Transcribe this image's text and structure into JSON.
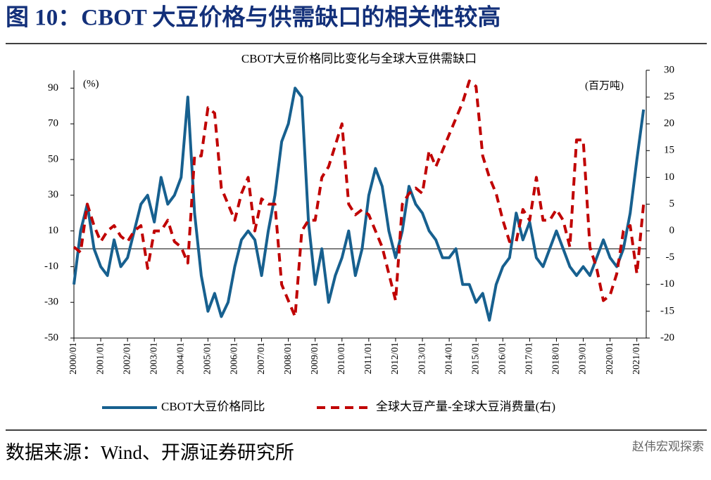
{
  "header": {
    "title": "图 10：CBOT 大豆价格与供需缺口的相关性较高"
  },
  "chart_data": {
    "type": "line",
    "title": "CBOT大豆价格同比变化与全球大豆供需缺口",
    "y_label": "(%)",
    "y2_label": "(百万吨)",
    "categories": [
      "2000/01",
      null,
      null,
      null,
      "2001/01",
      null,
      null,
      null,
      "2002/01",
      null,
      null,
      null,
      "2003/01",
      null,
      null,
      null,
      "2004/01",
      null,
      null,
      null,
      "2005/01",
      null,
      null,
      null,
      "2006/01",
      null,
      null,
      null,
      "2007/01",
      null,
      null,
      null,
      "2008/01",
      null,
      null,
      null,
      "2009/01",
      null,
      null,
      null,
      "2010/01",
      null,
      null,
      null,
      "2011/01",
      null,
      null,
      null,
      "2012/01",
      null,
      null,
      null,
      "2013/01",
      null,
      null,
      null,
      "2014/01",
      null,
      null,
      null,
      "2015/01",
      null,
      null,
      null,
      "2016/01",
      null,
      null,
      null,
      "2017/01",
      null,
      null,
      null,
      "2018/01",
      null,
      null,
      null,
      "2019/01",
      null,
      null,
      null,
      "2020/01",
      null,
      null,
      null,
      "2021/01",
      null
    ],
    "series": [
      {
        "name": "CBOT大豆价格同比",
        "color": "#17608f",
        "axis": "y",
        "dashed": false,
        "values": [
          -20,
          10,
          25,
          0,
          -10,
          -15,
          5,
          -10,
          -5,
          10,
          25,
          30,
          15,
          40,
          25,
          30,
          40,
          85,
          20,
          -15,
          -35,
          -25,
          -38,
          -30,
          -10,
          5,
          10,
          5,
          -15,
          10,
          30,
          60,
          70,
          90,
          85,
          15,
          -20,
          0,
          -30,
          -15,
          -5,
          10,
          -15,
          0,
          30,
          45,
          35,
          10,
          -5,
          10,
          35,
          25,
          20,
          10,
          5,
          -5,
          -5,
          0,
          -20,
          -20,
          -30,
          -25,
          -40,
          -20,
          -10,
          -5,
          20,
          5,
          15,
          -5,
          -10,
          0,
          10,
          0,
          -10,
          -15,
          -10,
          -15,
          -5,
          5,
          -5,
          -10,
          0,
          20,
          50,
          78
        ]
      },
      {
        "name": "全球大豆产量-全球大豆消费量(右)",
        "color": "#c00000",
        "axis": "y2",
        "dashed": true,
        "values": [
          -3,
          -4,
          5,
          1,
          -2,
          0,
          1,
          -1,
          -2,
          0,
          1,
          -7,
          0,
          0,
          2,
          -2,
          -3,
          -6,
          14,
          14,
          23,
          22,
          8,
          5,
          2,
          7,
          10,
          0,
          6,
          5,
          5,
          -10,
          -13,
          -16,
          0,
          2,
          2,
          10,
          12,
          16,
          20,
          5,
          3,
          4,
          3,
          0,
          -3,
          -8,
          -13,
          5,
          7,
          8,
          7,
          15,
          12,
          15,
          18,
          21,
          24,
          28,
          27,
          14,
          10,
          7,
          2,
          -2,
          -2,
          4,
          2,
          10,
          2,
          2,
          4,
          2,
          -3,
          17,
          17,
          -3,
          -7,
          -13,
          -12,
          -8,
          0,
          1,
          -8,
          5
        ]
      }
    ],
    "ylim": [
      -50,
      100
    ],
    "yticks": [
      -50,
      -30,
      -10,
      10,
      30,
      50,
      70,
      90
    ],
    "y2lim": [
      -20,
      30
    ],
    "y2ticks": [
      -20,
      -15,
      -10,
      -5,
      0,
      5,
      10,
      15,
      20,
      25,
      30
    ]
  },
  "footer": {
    "source": "数据来源：Wind、开源证券研究所",
    "watermark": "赵伟宏观探索"
  }
}
